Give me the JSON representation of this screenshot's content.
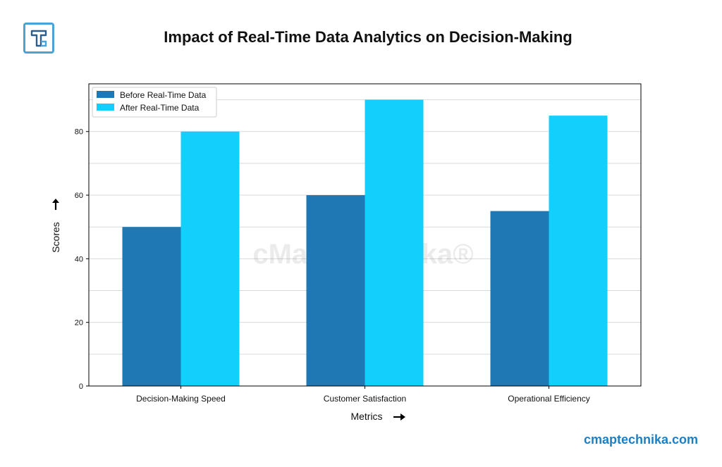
{
  "header": {
    "logo_icon": "letter-t-logo-icon",
    "brand_url": "cmaptechnika.com"
  },
  "colors": {
    "before": "#1f77b4",
    "after": "#12cffc",
    "brand": "#1c7fc4",
    "grid": "#d9d9d9"
  },
  "chart_data": {
    "type": "bar",
    "title": "Impact of Real-Time Data Analytics on Decision-Making",
    "xlabel": "Metrics",
    "ylabel": "Scores",
    "categories": [
      "Decision-Making Speed",
      "Customer Satisfaction",
      "Operational Efficiency"
    ],
    "series": [
      {
        "name": "Before Real-Time Data",
        "values": [
          50,
          60,
          55
        ]
      },
      {
        "name": "After Real-Time Data",
        "values": [
          80,
          90,
          85
        ]
      }
    ],
    "ylim": [
      0,
      95
    ],
    "yticks": [
      0,
      20,
      40,
      60,
      80
    ],
    "grid": true,
    "legend_position": "top-left",
    "watermark": "cMap Technika®"
  }
}
